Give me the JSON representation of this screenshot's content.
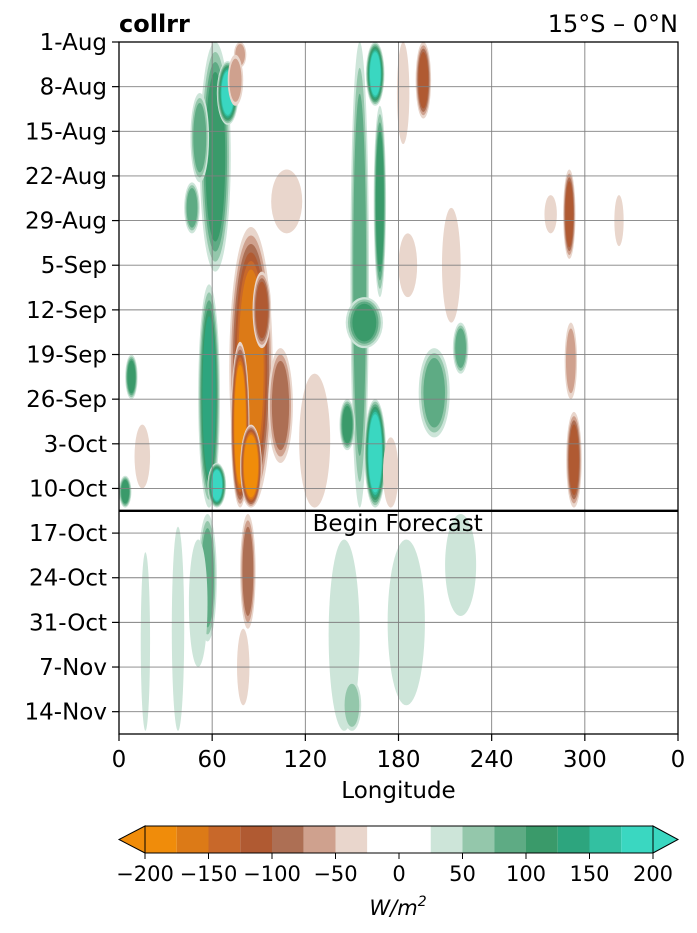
{
  "chart_data": {
    "type": "heatmap",
    "title_left": "collrr",
    "title_right": "15°S – 0°N",
    "xlabel": "Longitude",
    "ylabel": "",
    "x_ticks": [
      "0",
      "60",
      "120",
      "180",
      "240",
      "300",
      "0"
    ],
    "x_values": [
      0,
      60,
      120,
      180,
      240,
      300,
      360
    ],
    "xlim": [
      0,
      360
    ],
    "y_ticks": [
      "1-Aug",
      "8-Aug",
      "15-Aug",
      "22-Aug",
      "29-Aug",
      "5-Sep",
      "12-Sep",
      "19-Sep",
      "26-Sep",
      "3-Oct",
      "10-Oct",
      "17-Oct",
      "24-Oct",
      "31-Oct",
      "7-Nov",
      "14-Nov"
    ],
    "y_values": [
      0,
      7,
      14,
      21,
      28,
      35,
      42,
      49,
      56,
      63,
      70,
      77,
      84,
      91,
      98,
      105
    ],
    "ylim": [
      0,
      108.5
    ],
    "y_inverted": true,
    "grid": true,
    "forecast_line": {
      "y": 73.5,
      "label": "Begin Forecast"
    },
    "colorbar": {
      "label": "W/m",
      "label_sup": "2",
      "ticks": [
        "−200",
        "−150",
        "−100",
        "−50",
        "0",
        "50",
        "100",
        "150",
        "200"
      ],
      "tick_values": [
        -200,
        -150,
        -100,
        -50,
        0,
        50,
        100,
        150,
        200
      ],
      "vmin": -200,
      "vmax": 200,
      "levels": [
        -200,
        -175,
        -150,
        -125,
        -100,
        -75,
        -50,
        -25,
        25,
        50,
        75,
        100,
        125,
        150,
        175,
        200
      ],
      "colors": [
        "#f08c0a",
        "#dc7a17",
        "#c8682a",
        "#b05a32",
        "#ad6f54",
        "#cfa18e",
        "#e9d6cc",
        "#ffffff",
        "#cde5d9",
        "#94c7ab",
        "#5eab84",
        "#3a9a6a",
        "#2da57e",
        "#33c0a1",
        "#3ad7c1"
      ],
      "extend": "both"
    },
    "anomalies": [
      {
        "x": 62,
        "y0": 0,
        "y1": 36,
        "w": 10,
        "v": 120
      },
      {
        "x": 52,
        "y0": 8,
        "y1": 22,
        "w": 6,
        "v": 90
      },
      {
        "x": 58,
        "y0": 38,
        "y1": 73,
        "w": 7,
        "v": 140
      },
      {
        "x": 63,
        "y0": 66,
        "y1": 73,
        "w": 6,
        "v": 190
      },
      {
        "x": 47,
        "y0": 22,
        "y1": 30,
        "w": 5,
        "v": 80
      },
      {
        "x": 70,
        "y0": 3,
        "y1": 13,
        "w": 7,
        "v": 180
      },
      {
        "x": 78,
        "y0": 0,
        "y1": 4,
        "w": 4,
        "v": -70
      },
      {
        "x": 75,
        "y0": 2,
        "y1": 10,
        "w": 5,
        "v": -60
      },
      {
        "x": 8,
        "y0": 49,
        "y1": 56,
        "w": 4,
        "v": 110
      },
      {
        "x": 4,
        "y0": 68,
        "y1": 73,
        "w": 4,
        "v": 120
      },
      {
        "x": 15,
        "y0": 60,
        "y1": 70,
        "w": 5,
        "v": -45
      },
      {
        "x": 85,
        "y0": 29,
        "y1": 73,
        "w": 14,
        "v": -150
      },
      {
        "x": 78,
        "y0": 47,
        "y1": 73,
        "w": 6,
        "v": -210
      },
      {
        "x": 85,
        "y0": 60,
        "y1": 73,
        "w": 7,
        "v": -240
      },
      {
        "x": 92,
        "y0": 36,
        "y1": 48,
        "w": 6,
        "v": -100
      },
      {
        "x": 104,
        "y0": 48,
        "y1": 66,
        "w": 8,
        "v": -75
      },
      {
        "x": 108,
        "y0": 20,
        "y1": 30,
        "w": 10,
        "v": -45
      },
      {
        "x": 126,
        "y0": 52,
        "y1": 73,
        "w": 10,
        "v": -40
      },
      {
        "x": 155,
        "y0": 0,
        "y1": 73,
        "w": 6,
        "v": 90
      },
      {
        "x": 158,
        "y0": 40,
        "y1": 48,
        "w": 12,
        "v": 110
      },
      {
        "x": 165,
        "y0": 0,
        "y1": 10,
        "w": 6,
        "v": 190
      },
      {
        "x": 168,
        "y0": 10,
        "y1": 40,
        "w": 4,
        "v": 120
      },
      {
        "x": 165,
        "y0": 56,
        "y1": 73,
        "w": 7,
        "v": 200
      },
      {
        "x": 147,
        "y0": 56,
        "y1": 64,
        "w": 5,
        "v": 110
      },
      {
        "x": 183,
        "y0": 0,
        "y1": 16,
        "w": 4,
        "v": -40
      },
      {
        "x": 196,
        "y0": 0,
        "y1": 12,
        "w": 5,
        "v": -100
      },
      {
        "x": 203,
        "y0": 48,
        "y1": 62,
        "w": 10,
        "v": 90
      },
      {
        "x": 220,
        "y0": 44,
        "y1": 52,
        "w": 5,
        "v": 80
      },
      {
        "x": 186,
        "y0": 30,
        "y1": 40,
        "w": 6,
        "v": -40
      },
      {
        "x": 175,
        "y0": 62,
        "y1": 73,
        "w": 5,
        "v": -35
      },
      {
        "x": 214,
        "y0": 26,
        "y1": 44,
        "w": 6,
        "v": -30
      },
      {
        "x": 290,
        "y0": 20,
        "y1": 34,
        "w": 4,
        "v": -120
      },
      {
        "x": 293,
        "y0": 58,
        "y1": 73,
        "w": 5,
        "v": -110
      },
      {
        "x": 291,
        "y0": 44,
        "y1": 56,
        "w": 4,
        "v": -55
      },
      {
        "x": 278,
        "y0": 24,
        "y1": 30,
        "w": 4,
        "v": -40
      },
      {
        "x": 322,
        "y0": 24,
        "y1": 32,
        "w": 3,
        "v": -30
      },
      {
        "x": 57,
        "y0": 74,
        "y1": 94,
        "w": 6,
        "v": 85
      },
      {
        "x": 51,
        "y0": 78,
        "y1": 98,
        "w": 6,
        "v": 45
      },
      {
        "x": 38,
        "y0": 76,
        "y1": 108,
        "w": 4,
        "v": 30
      },
      {
        "x": 83,
        "y0": 74,
        "y1": 92,
        "w": 5,
        "v": -80
      },
      {
        "x": 80,
        "y0": 92,
        "y1": 104,
        "w": 4,
        "v": -30
      },
      {
        "x": 145,
        "y0": 78,
        "y1": 108,
        "w": 10,
        "v": 35
      },
      {
        "x": 150,
        "y0": 100,
        "y1": 108,
        "w": 6,
        "v": 60
      },
      {
        "x": 185,
        "y0": 78,
        "y1": 104,
        "w": 12,
        "v": 30
      },
      {
        "x": 220,
        "y0": 74,
        "y1": 90,
        "w": 10,
        "v": 35
      },
      {
        "x": 17,
        "y0": 80,
        "y1": 108,
        "w": 3,
        "v": 30
      }
    ]
  }
}
